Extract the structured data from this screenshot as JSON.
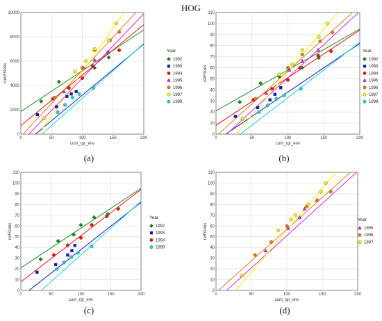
{
  "figure_title": "HOG",
  "series_colors": {
    "1992": "#1a8a1a",
    "1993": "#1010cc",
    "1994": "#ee1111",
    "1995": "#dd22dd",
    "1996": "#e07a1a",
    "1997": "#f2f200",
    "1999": "#11d6d6"
  },
  "series_markers": {
    "1992": "diamond",
    "1993": "square",
    "1994": "circle",
    "1995": "triangle",
    "1996": "circle",
    "1997": "circle",
    "1999": "circle"
  },
  "chart_data": [
    {
      "panel_label": "(a)",
      "type": "scatter",
      "xlabel": "cum_rgr_env",
      "ylabel": "cumFGobs",
      "xlim": [
        0,
        200
      ],
      "ylim": [
        0,
        10000
      ],
      "xticks": [
        0,
        50,
        100,
        150,
        200
      ],
      "yticks": [
        0,
        2000,
        4000,
        6000,
        8000,
        10000
      ],
      "grid": true,
      "legend_title": "Year",
      "legend_position": "right",
      "series": [
        {
          "name": "1992",
          "points": [
            [
              33,
              2700
            ],
            [
              62,
              4300
            ],
            [
              120,
              5450
            ],
            [
              143,
              6300
            ]
          ],
          "fit": [
            1850,
            33.6
          ]
        },
        {
          "name": "1993",
          "points": [
            [
              27,
              1600
            ],
            [
              58,
              2250
            ],
            [
              75,
              3100
            ],
            [
              82,
              3300
            ],
            [
              90,
              3500
            ]
          ],
          "fit": [
            -1000,
            42.0
          ]
        },
        {
          "name": "1994",
          "points": [
            [
              52,
              2900
            ],
            [
              78,
              3800
            ],
            [
              100,
              4600
            ],
            [
              117,
              5600
            ],
            [
              142,
              6700
            ],
            [
              160,
              6900
            ]
          ],
          "fit": [
            700,
            41.5
          ]
        },
        {
          "name": "1995",
          "points": [
            [
              37,
              1300
            ],
            [
              70,
              3500
            ],
            [
              102,
              5450
            ],
            [
              120,
              6100
            ],
            [
              142,
              6750
            ]
          ],
          "fit": [
            -700,
            53.0
          ]
        },
        {
          "name": "1996",
          "points": [
            [
              55,
              3000
            ],
            [
              100,
              5450
            ],
            [
              120,
              6900
            ],
            [
              145,
              7700
            ],
            [
              160,
              8400
            ]
          ],
          "fit": [
            -200,
            54.5
          ]
        },
        {
          "name": "1997",
          "points": [
            [
              37,
              1300
            ],
            [
              88,
              5150
            ],
            [
              106,
              6000
            ],
            [
              120,
              7000
            ],
            [
              143,
              7700
            ],
            [
              155,
              9100
            ]
          ],
          "fit": [
            -2100,
            72.0
          ]
        },
        {
          "name": "1999",
          "points": [
            [
              60,
              1800
            ],
            [
              72,
              2400
            ],
            [
              84,
              3000
            ],
            [
              95,
              3300
            ],
            [
              118,
              3800
            ]
          ],
          "fit": [
            -1550,
            45.0
          ]
        }
      ]
    },
    {
      "panel_label": "(b)",
      "type": "scatter",
      "xlabel": "cum_rgr_env",
      "ylabel": "relFGobs",
      "xlim": [
        0,
        200
      ],
      "ylim": [
        0,
        110
      ],
      "xticks": [
        0,
        50,
        100,
        150,
        200
      ],
      "yticks": [
        0,
        10,
        20,
        30,
        40,
        50,
        60,
        70,
        80,
        90,
        100,
        110
      ],
      "grid": true,
      "legend_title": "Year",
      "legend_position": "right",
      "series": [
        {
          "name": "1992",
          "points": [
            [
              33,
              29
            ],
            [
              62,
              46
            ],
            [
              88,
              52
            ],
            [
              120,
              60
            ],
            [
              143,
              69
            ]
          ],
          "fit": [
            21,
            0.37
          ]
        },
        {
          "name": "1993",
          "points": [
            [
              27,
              16
            ],
            [
              58,
              24
            ],
            [
              75,
              31
            ],
            [
              82,
              36
            ],
            [
              90,
              42
            ]
          ],
          "fit": [
            -6,
            0.44
          ]
        },
        {
          "name": "1994",
          "points": [
            [
              52,
              31
            ],
            [
              78,
              41
            ],
            [
              100,
              49
            ],
            [
              117,
              60
            ],
            [
              142,
              71
            ],
            [
              160,
              75
            ]
          ],
          "fit": [
            8,
            0.43
          ]
        },
        {
          "name": "1995",
          "points": [
            [
              37,
              14
            ],
            [
              70,
              37
            ],
            [
              102,
              58
            ],
            [
              120,
              66
            ],
            [
              142,
              76
            ]
          ],
          "fit": [
            -9,
            0.6
          ]
        },
        {
          "name": "1996",
          "points": [
            [
              55,
              32
            ],
            [
              100,
              60
            ],
            [
              120,
              72
            ],
            [
              145,
              84
            ],
            [
              162,
              92
            ]
          ],
          "fit": [
            -2,
            0.59
          ]
        },
        {
          "name": "1997",
          "points": [
            [
              37,
              14
            ],
            [
              88,
              54
            ],
            [
              106,
              63
            ],
            [
              120,
              76
            ],
            [
              143,
              88
            ],
            [
              155,
              100
            ]
          ],
          "fit": [
            -22,
            0.78
          ]
        },
        {
          "name": "1999",
          "points": [
            [
              60,
              20
            ],
            [
              72,
              26
            ],
            [
              84,
              32
            ],
            [
              95,
              35
            ],
            [
              118,
              41
            ]
          ],
          "fit": [
            -17,
            0.5
          ]
        }
      ]
    },
    {
      "panel_label": "(c)",
      "type": "scatter",
      "xlabel": "cum_rgr_env",
      "ylabel": "relFGobs",
      "xlim": [
        0,
        200
      ],
      "ylim": [
        0,
        110
      ],
      "xticks": [
        0,
        50,
        100,
        150,
        200
      ],
      "yticks": [
        0,
        10,
        20,
        30,
        40,
        50,
        60,
        70,
        80,
        90,
        100,
        110
      ],
      "grid": true,
      "legend_title": "Year",
      "legend_position": "right",
      "series": [
        {
          "name": "1992",
          "points": [
            [
              33,
              29
            ],
            [
              62,
              46
            ],
            [
              88,
              52
            ],
            [
              100,
              61
            ],
            [
              122,
              68
            ],
            [
              145,
              71
            ]
          ],
          "fit": [
            21,
            0.37
          ]
        },
        {
          "name": "1993",
          "points": [
            [
              27,
              17
            ],
            [
              58,
              24
            ],
            [
              78,
              33
            ],
            [
              85,
              37
            ],
            [
              90,
              42
            ]
          ],
          "fit": [
            -6,
            0.44
          ]
        },
        {
          "name": "1994",
          "points": [
            [
              55,
              33
            ],
            [
              78,
              42
            ],
            [
              100,
              49
            ],
            [
              118,
              61
            ],
            [
              143,
              69
            ],
            [
              162,
              76
            ]
          ],
          "fit": [
            8,
            0.43
          ]
        },
        {
          "name": "1999",
          "points": [
            [
              60,
              20
            ],
            [
              72,
              26
            ],
            [
              84,
              31
            ],
            [
              95,
              35
            ],
            [
              118,
              41
            ]
          ],
          "fit": [
            -17,
            0.5
          ]
        }
      ]
    },
    {
      "panel_label": "(d)",
      "type": "scatter",
      "xlabel": "cum_rgr_env",
      "ylabel": "relFGobs",
      "xlim": [
        0,
        200
      ],
      "ylim": [
        0,
        110
      ],
      "xticks": [
        0,
        50,
        100,
        150,
        200
      ],
      "yticks": [
        0,
        10,
        20,
        30,
        40,
        50,
        60,
        70,
        80,
        90,
        100,
        110
      ],
      "grid": true,
      "legend_title": "Year",
      "legend_position": "right",
      "series": [
        {
          "name": "1995",
          "points": [
            [
              37,
              14
            ],
            [
              70,
              37
            ],
            [
              102,
              58
            ],
            [
              118,
              68
            ],
            [
              125,
              76
            ],
            [
              142,
              84
            ]
          ],
          "fit": [
            -9,
            0.6
          ]
        },
        {
          "name": "1996",
          "points": [
            [
              55,
              33
            ],
            [
              78,
              45
            ],
            [
              100,
              60
            ],
            [
              128,
              78
            ],
            [
              143,
              84
            ],
            [
              162,
              92
            ]
          ],
          "fit": [
            -2,
            0.59
          ]
        },
        {
          "name": "1997",
          "points": [
            [
              37,
              14
            ],
            [
              88,
              56
            ],
            [
              106,
              66
            ],
            [
              112,
              70
            ],
            [
              130,
              80
            ],
            [
              148,
              92
            ],
            [
              155,
              100
            ]
          ],
          "fit": [
            -22,
            0.78
          ]
        }
      ]
    }
  ]
}
